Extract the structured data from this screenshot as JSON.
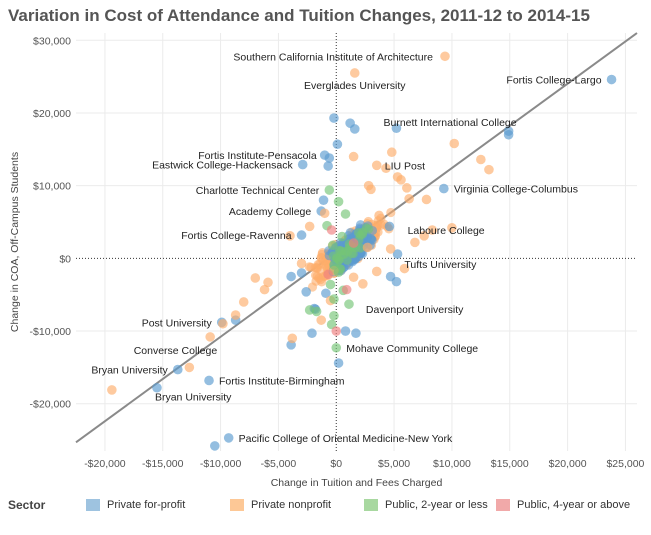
{
  "title": "Variation in Cost of Attendance and Tuition Changes, 2011-12 to 2014-15",
  "chart_data": {
    "type": "scatter",
    "xlabel": "Change in Tuition and Fees Charged",
    "ylabel": "Change in COA, Off-Campus Students",
    "xlim": [
      -22500,
      26000
    ],
    "ylim": [
      -26500,
      31000
    ],
    "x_ticks": [
      -20000,
      -15000,
      -10000,
      -5000,
      0,
      5000,
      10000,
      15000,
      20000,
      25000
    ],
    "x_tick_labels": [
      "-$20,000",
      "-$15,000",
      "-$10,000",
      "-$5,000",
      "$0",
      "$5,000",
      "$10,000",
      "$15,000",
      "$20,000",
      "$25,000"
    ],
    "y_ticks": [
      -20000,
      -10000,
      0,
      10000,
      20000,
      30000
    ],
    "y_tick_labels": [
      "-$20,000",
      "-$10,000",
      "$0",
      "$10,000",
      "$20,000",
      "$30,000"
    ],
    "grid": true,
    "trend_line": {
      "x": [
        -22500,
        26000
      ],
      "y": [
        -25300,
        31000
      ]
    },
    "legend": {
      "title": "Sector",
      "placement": "bottom",
      "entries": [
        {
          "name": "Private for-profit",
          "color": "#9ec3e0"
        },
        {
          "name": "Private nonprofit",
          "color": "#fdc896"
        },
        {
          "name": "Public, 2-year or less",
          "color": "#a8d8a0"
        },
        {
          "name": "Public, 4-year or above",
          "color": "#f1a9a9"
        }
      ]
    },
    "series": [
      {
        "name": "Private for-profit",
        "color": "#5b9bd0",
        "points": [
          [
            23800,
            24600
          ],
          [
            14900,
            17500
          ],
          [
            14900,
            17000
          ],
          [
            9300,
            9600
          ],
          [
            5200,
            17900
          ],
          [
            -2900,
            12900
          ],
          [
            -1000,
            14200
          ],
          [
            -600,
            13800
          ],
          [
            -700,
            12700
          ],
          [
            100,
            15700
          ],
          [
            1200,
            18600
          ],
          [
            1600,
            17800
          ],
          [
            -200,
            19300
          ],
          [
            -3000,
            3200
          ],
          [
            -1300,
            6500
          ],
          [
            -1100,
            8000
          ],
          [
            4600,
            4400
          ],
          [
            5300,
            600
          ],
          [
            5200,
            -3200
          ],
          [
            4700,
            -2500
          ],
          [
            -9900,
            -8800
          ],
          [
            -8700,
            -8500
          ],
          [
            -13700,
            -15300
          ],
          [
            -15500,
            -17800
          ],
          [
            -11000,
            -16800
          ],
          [
            -9300,
            -24700
          ],
          [
            -10500,
            -25800
          ],
          [
            -3900,
            -11900
          ],
          [
            -2100,
            -10300
          ],
          [
            -1800,
            -7000
          ],
          [
            -2600,
            -4600
          ],
          [
            -3900,
            -2500
          ],
          [
            -3000,
            -2000
          ],
          [
            200,
            -14400
          ],
          [
            800,
            -10000
          ],
          [
            1700,
            -10300
          ],
          [
            -1900,
            -6900
          ],
          [
            -900,
            -4800
          ]
        ]
      },
      {
        "name": "Private nonprofit",
        "color": "#fdae6b",
        "points": [
          [
            9400,
            27800
          ],
          [
            1600,
            25500
          ],
          [
            10200,
            15800
          ],
          [
            12500,
            13600
          ],
          [
            13200,
            12200
          ],
          [
            4800,
            14600
          ],
          [
            3500,
            12800
          ],
          [
            4300,
            12400
          ],
          [
            1500,
            14000
          ],
          [
            5300,
            11200
          ],
          [
            5600,
            10800
          ],
          [
            2800,
            10000
          ],
          [
            3000,
            9500
          ],
          [
            6100,
            9700
          ],
          [
            7800,
            8100
          ],
          [
            6300,
            8200
          ],
          [
            7600,
            3100
          ],
          [
            8300,
            3900
          ],
          [
            6800,
            2200
          ],
          [
            10000,
            4200
          ],
          [
            3700,
            5900
          ],
          [
            -1000,
            6200
          ],
          [
            -2300,
            4400
          ],
          [
            -4000,
            3100
          ],
          [
            -12700,
            -15000
          ],
          [
            -10900,
            -10800
          ],
          [
            -19400,
            -18100
          ],
          [
            -8700,
            -7800
          ],
          [
            -8000,
            -6000
          ],
          [
            -6200,
            -4300
          ],
          [
            -5900,
            -3300
          ],
          [
            -7000,
            -2700
          ],
          [
            -9800,
            -9000
          ],
          [
            -3800,
            -11000
          ],
          [
            -1300,
            -8500
          ],
          [
            -500,
            -5800
          ],
          [
            1500,
            -2600
          ],
          [
            2300,
            -3500
          ],
          [
            3500,
            -1800
          ],
          [
            5900,
            -1400
          ],
          [
            4700,
            1300
          ],
          [
            2700,
            1500
          ],
          [
            -200,
            -1700
          ],
          [
            -3000,
            -700
          ]
        ]
      },
      {
        "name": "Public, 2-year or less",
        "color": "#74c476",
        "points": [
          [
            -600,
            9400
          ],
          [
            200,
            7800
          ],
          [
            800,
            6100
          ],
          [
            -800,
            4500
          ],
          [
            500,
            3000
          ],
          [
            -300,
            1800
          ],
          [
            -200,
            -900
          ],
          [
            200,
            -1900
          ],
          [
            -500,
            -3600
          ],
          [
            600,
            -4400
          ],
          [
            -200,
            -5600
          ],
          [
            -200,
            -7900
          ],
          [
            -400,
            -9100
          ],
          [
            0,
            -12300
          ],
          [
            -2300,
            -7100
          ],
          [
            -1700,
            -7300
          ],
          [
            1100,
            -6300
          ],
          [
            400,
            1000
          ]
        ]
      },
      {
        "name": "Public, 4-year or above",
        "color": "#f08080",
        "points": [
          [
            0,
            -10000
          ],
          [
            900,
            -4300
          ],
          [
            -700,
            -2200
          ],
          [
            1500,
            2100
          ],
          [
            -400,
            3900
          ]
        ]
      }
    ],
    "annotations": [
      {
        "text": "Southern California Institute of Architecture",
        "x": 9400,
        "y": 27800
      },
      {
        "text": "Everglades University",
        "x": 1600,
        "y": 25500
      },
      {
        "text": "Fortis College-Largo",
        "x": 23800,
        "y": 24600
      },
      {
        "text": "Burnett International College",
        "x": 14900,
        "y": 17500
      },
      {
        "text": "Fortis Institute-Pensacola",
        "x": -1000,
        "y": 14200
      },
      {
        "text": "LIU Post",
        "x": 3500,
        "y": 12800
      },
      {
        "text": "Eastwick College-Hackensack",
        "x": -2900,
        "y": 12900
      },
      {
        "text": "Charlotte Technical Center",
        "x": -600,
        "y": 9400
      },
      {
        "text": "Virginia College-Columbus",
        "x": 9300,
        "y": 9600
      },
      {
        "text": "Academy College",
        "x": -1300,
        "y": 6500
      },
      {
        "text": "Laboure College",
        "x": 5300,
        "y": 3900
      },
      {
        "text": "Fortis College-Ravenna",
        "x": -3000,
        "y": 3200
      },
      {
        "text": "Tufts University",
        "x": 5200,
        "y": -800
      },
      {
        "text": "Davenport University",
        "x": 1700,
        "y": -7000
      },
      {
        "text": "Post University",
        "x": -9900,
        "y": -8800
      },
      {
        "text": "Mohave Community College",
        "x": 0,
        "y": -12300
      },
      {
        "text": "Converse College",
        "x": -10900,
        "y": -12600
      },
      {
        "text": "Bryan University",
        "x": -13700,
        "y": -15300
      },
      {
        "text": "Fortis Institute-Birmingham",
        "x": -11000,
        "y": -16800
      },
      {
        "text": "Bryan University",
        "x": -15500,
        "y": -19000
      },
      {
        "text": "Pacific College of Oriental Medicine-New York",
        "x": -9300,
        "y": -24700
      }
    ]
  }
}
